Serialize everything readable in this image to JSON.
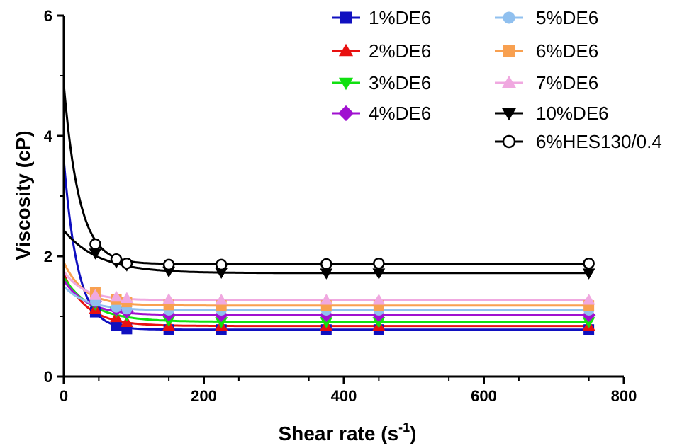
{
  "chart_data": {
    "type": "line",
    "title": "",
    "xlabel": "Shear rate (s",
    "xlabel_sup": "-1",
    "xlabel_close": ")",
    "ylabel": "Viscosity (cP)",
    "xlim": [
      0,
      800
    ],
    "ylim": [
      0,
      6
    ],
    "x_ticks": [
      0,
      200,
      400,
      600,
      800
    ],
    "y_ticks": [
      0,
      2,
      4,
      6
    ],
    "x_tick_labels": [
      "0",
      "200",
      "400",
      "600",
      "800"
    ],
    "y_tick_labels": [
      "0",
      "2",
      "4",
      "6"
    ],
    "grid": false,
    "legend_position": "top-right",
    "x": [
      45,
      75,
      90,
      150,
      225,
      375,
      450,
      750
    ],
    "series": [
      {
        "name": "1%DE6",
        "color": "#1010c0",
        "marker": "square",
        "filled": true,
        "values": [
          1.07,
          0.85,
          0.79,
          0.78,
          0.78,
          0.78,
          0.78,
          0.78
        ],
        "fit": {
          "plateau": 0.78,
          "y0": 3.6,
          "k": 0.05
        }
      },
      {
        "name": "2%DE6",
        "color": "#e81010",
        "marker": "triangle-up",
        "filled": true,
        "values": [
          1.12,
          0.98,
          0.9,
          0.84,
          0.84,
          0.84,
          0.84,
          0.84
        ],
        "fit": {
          "plateau": 0.84,
          "y0": 1.7,
          "k": 0.03
        }
      },
      {
        "name": "3%DE6",
        "color": "#10e010",
        "marker": "triangle-down",
        "filled": true,
        "values": [
          1.2,
          1.08,
          1.02,
          0.93,
          0.91,
          0.91,
          0.91,
          0.91
        ],
        "fit": {
          "plateau": 0.91,
          "y0": 1.65,
          "k": 0.025
        }
      },
      {
        "name": "4%DE6",
        "color": "#a010d0",
        "marker": "diamond",
        "filled": true,
        "values": [
          1.25,
          1.12,
          1.08,
          1.03,
          1.02,
          1.02,
          1.02,
          1.02
        ],
        "fit": {
          "plateau": 1.02,
          "y0": 1.6,
          "k": 0.03
        }
      },
      {
        "name": "5%DE6",
        "color": "#90c0ef",
        "marker": "circle",
        "filled": true,
        "values": [
          1.25,
          1.15,
          1.12,
          1.1,
          1.1,
          1.1,
          1.1,
          1.1
        ],
        "fit": {
          "plateau": 1.1,
          "y0": 1.5,
          "k": 0.03
        }
      },
      {
        "name": "6%DE6",
        "color": "#f8a050",
        "marker": "square",
        "filled": true,
        "values": [
          1.4,
          1.28,
          1.24,
          1.19,
          1.18,
          1.18,
          1.18,
          1.18
        ],
        "fit": {
          "plateau": 1.18,
          "y0": 1.9,
          "k": 0.035
        }
      },
      {
        "name": "7%DE6",
        "color": "#f0a8e0",
        "marker": "triangle-up",
        "filled": true,
        "values": [
          1.35,
          1.32,
          1.3,
          1.28,
          1.27,
          1.27,
          1.27,
          1.27
        ],
        "fit": {
          "plateau": 1.27,
          "y0": 1.75,
          "k": 0.035
        }
      },
      {
        "name": "10%DE6",
        "color": "#000000",
        "marker": "triangle-down",
        "filled": true,
        "values": [
          2.05,
          1.9,
          1.85,
          1.75,
          1.73,
          1.72,
          1.72,
          1.72
        ],
        "fit": {
          "plateau": 1.72,
          "y0": 2.43,
          "k": 0.02
        }
      },
      {
        "name": "6%HES130/0.4",
        "color": "#000000",
        "marker": "circle",
        "filled": false,
        "values": [
          2.2,
          1.95,
          1.88,
          1.86,
          1.86,
          1.87,
          1.88,
          1.88
        ],
        "fit": {
          "plateau": 1.87,
          "y0": 4.85,
          "k": 0.045
        }
      }
    ]
  }
}
